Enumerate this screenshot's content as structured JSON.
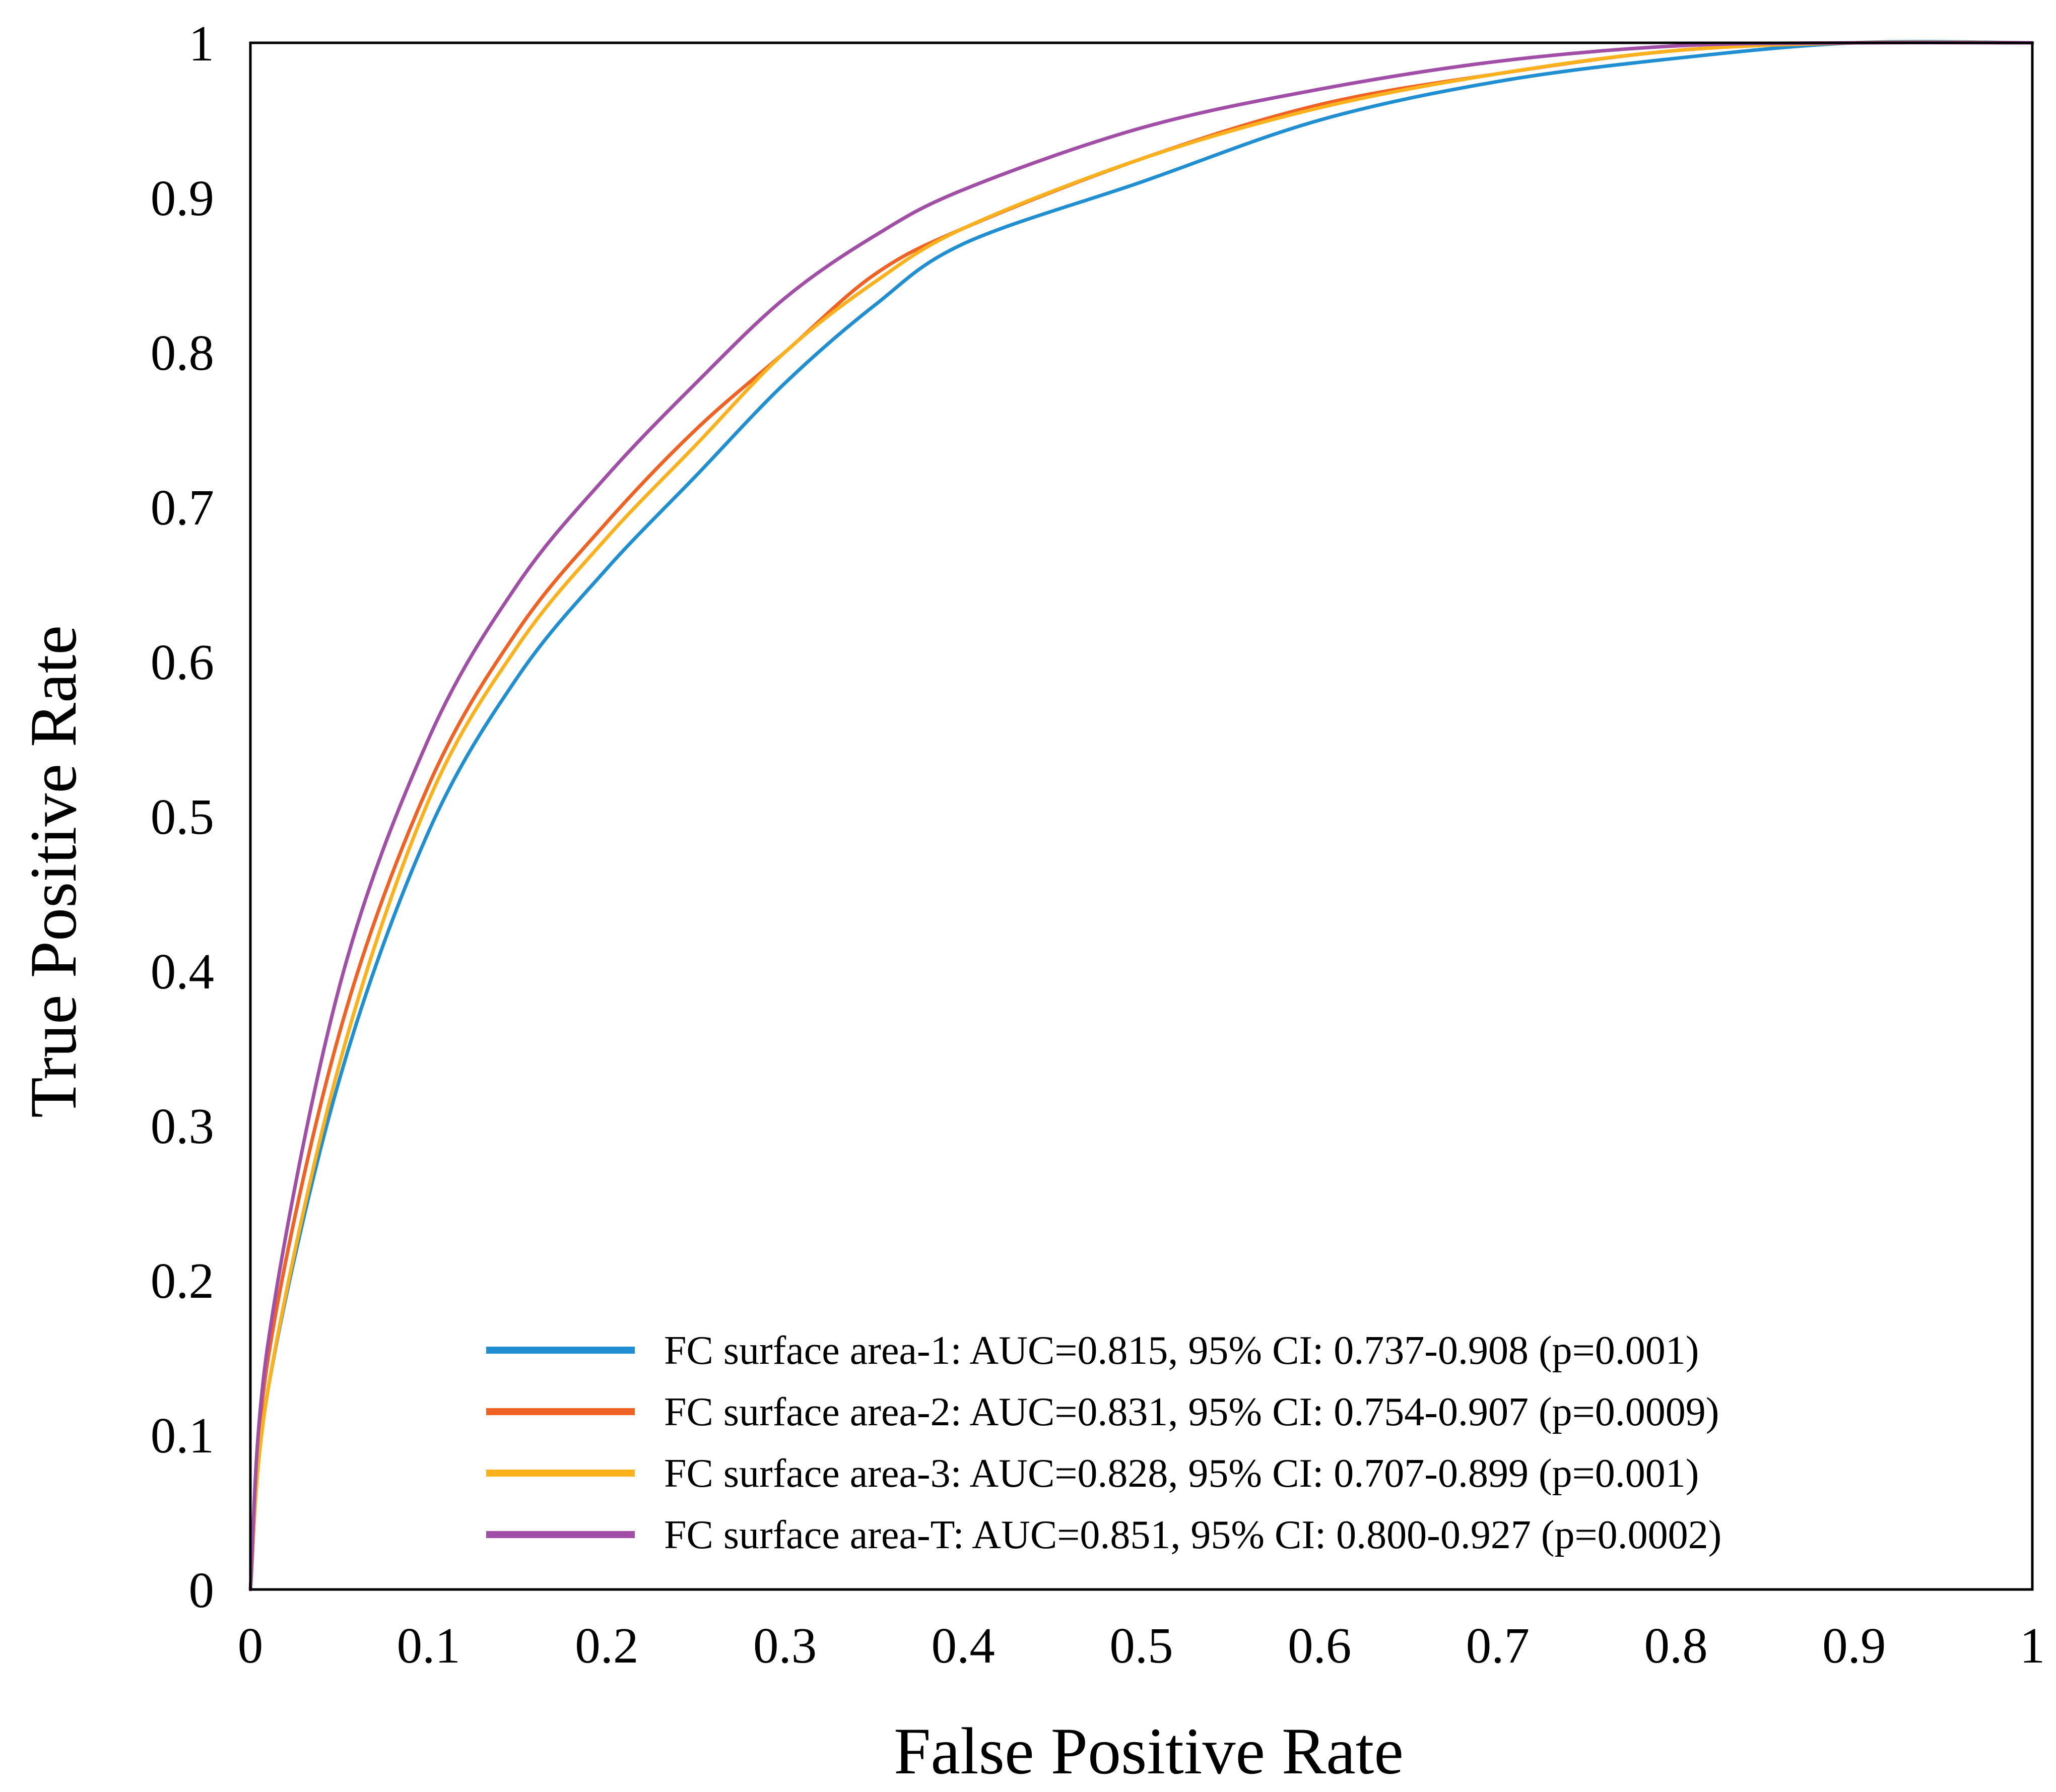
{
  "chart_data": {
    "type": "line",
    "xlabel": "False Positive Rate",
    "ylabel": "True Positive Rate",
    "xlim": [
      0,
      1
    ],
    "ylim": [
      0,
      1
    ],
    "xticks": [
      "0",
      "0.1",
      "0.2",
      "0.3",
      "0.4",
      "0.5",
      "0.6",
      "0.7",
      "0.8",
      "0.9",
      "1"
    ],
    "yticks": [
      "0",
      "0.1",
      "0.2",
      "0.3",
      "0.4",
      "0.5",
      "0.6",
      "0.7",
      "0.8",
      "0.9",
      "1"
    ],
    "grid": false,
    "legend_position": "bottom-right",
    "series": [
      {
        "label": "FC surface area-1: AUC=0.815, 95% CI: 0.737-0.908 (p=0.001)",
        "color": "#1f8fd1",
        "x": [
          0,
          0.01,
          0.05,
          0.1,
          0.15,
          0.2,
          0.25,
          0.3,
          0.35,
          0.4,
          0.5,
          0.6,
          0.7,
          0.8,
          0.9,
          1
        ],
        "y": [
          0,
          0.13,
          0.33,
          0.49,
          0.59,
          0.66,
          0.72,
          0.78,
          0.83,
          0.87,
          0.91,
          0.95,
          0.975,
          0.99,
          1,
          1
        ]
      },
      {
        "label": "FC surface area-2: AUC=0.831, 95% CI: 0.754-0.907 (p=0.0009)",
        "color": "#f06224",
        "x": [
          0,
          0.01,
          0.05,
          0.1,
          0.15,
          0.2,
          0.25,
          0.3,
          0.35,
          0.4,
          0.5,
          0.6,
          0.7,
          0.8,
          0.9,
          1
        ],
        "y": [
          0,
          0.15,
          0.36,
          0.52,
          0.62,
          0.69,
          0.75,
          0.8,
          0.85,
          0.88,
          0.925,
          0.96,
          0.98,
          0.995,
          1,
          1
        ]
      },
      {
        "label": "FC surface area-3: AUC=0.828, 95% CI: 0.707-0.899 (p=0.001)",
        "color": "#fbb11c",
        "x": [
          0,
          0.01,
          0.05,
          0.1,
          0.15,
          0.2,
          0.25,
          0.3,
          0.35,
          0.4,
          0.5,
          0.6,
          0.7,
          0.8,
          0.9,
          1
        ],
        "y": [
          0,
          0.13,
          0.34,
          0.51,
          0.61,
          0.68,
          0.74,
          0.8,
          0.845,
          0.88,
          0.925,
          0.958,
          0.98,
          0.995,
          1,
          1
        ]
      },
      {
        "label": "FC surface area-T: AUC=0.851, 95% CI: 0.800-0.927 (p=0.0002)",
        "color": "#a04ea6",
        "x": [
          0,
          0.01,
          0.05,
          0.1,
          0.15,
          0.2,
          0.25,
          0.3,
          0.35,
          0.4,
          0.5,
          0.6,
          0.7,
          0.8,
          0.9,
          1
        ],
        "y": [
          0,
          0.16,
          0.39,
          0.55,
          0.65,
          0.72,
          0.78,
          0.835,
          0.875,
          0.905,
          0.945,
          0.97,
          0.988,
          0.998,
          1,
          1
        ]
      }
    ]
  }
}
